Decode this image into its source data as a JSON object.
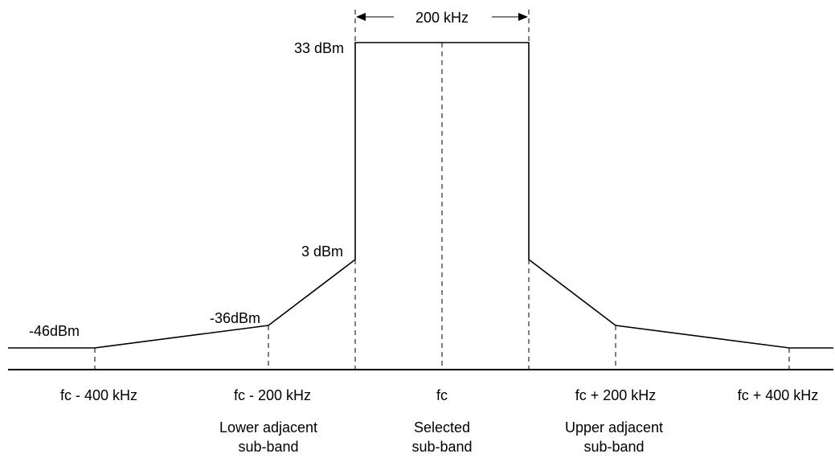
{
  "levels": {
    "top": "33 dBm",
    "edge": "3 dBm",
    "adjacent": "-36dBm",
    "far": "-46dBm"
  },
  "bandwidth_label": "200 kHz",
  "frequencies": {
    "minus_400": "fc - 400 kHz",
    "minus_200": "fc - 200 kHz",
    "center": "fc",
    "plus_200": "fc + 200 kHz",
    "plus_400": "fc + 400 kHz"
  },
  "subbands": {
    "lower": [
      "Lower adjacent",
      "sub-band"
    ],
    "selected": [
      "Selected",
      "sub-band"
    ],
    "upper": [
      "Upper adjacent",
      "sub-band"
    ]
  }
}
